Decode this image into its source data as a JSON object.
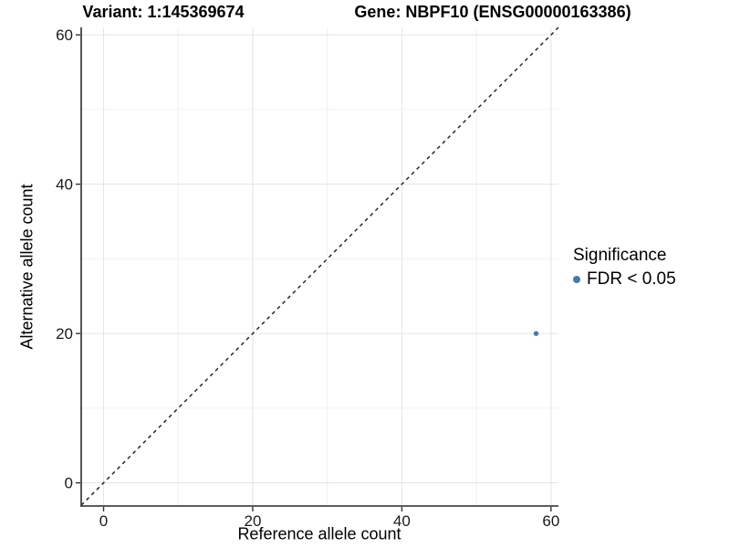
{
  "titles": {
    "left": "Variant: 1:145369674",
    "right": "Gene: NBPF10 (ENSG00000163386)"
  },
  "chart_data": {
    "type": "scatter",
    "title_left": "Variant: 1:145369674",
    "title_right": "Gene: NBPF10 (ENSG00000163386)",
    "xlabel": "Reference allele count",
    "ylabel": "Alternative allele count",
    "xlim": [
      -3,
      61
    ],
    "ylim": [
      -3.1,
      61
    ],
    "x_ticks": [
      0,
      20,
      40,
      60
    ],
    "y_ticks": [
      0,
      20,
      40,
      60
    ],
    "x_minor": [
      10,
      30,
      50
    ],
    "y_minor": [
      10,
      30,
      50
    ],
    "grid": true,
    "reference_line": {
      "kind": "identity y=x",
      "style": "dashed",
      "color": "#1a1a1a"
    },
    "series": [
      {
        "name": "FDR < 0.05",
        "color": "#4878a8",
        "points": [
          {
            "x": 58,
            "y": 20
          }
        ]
      }
    ],
    "legend": {
      "title": "Significance",
      "position": "right"
    }
  },
  "style_colors": {
    "major_grid": "#e4e4e4",
    "minor_grid": "#f0f0f0",
    "axis_line": "#444444",
    "tick_mark": "#333333",
    "tick_label": "#1a1a1a",
    "point": "#4878a8"
  }
}
